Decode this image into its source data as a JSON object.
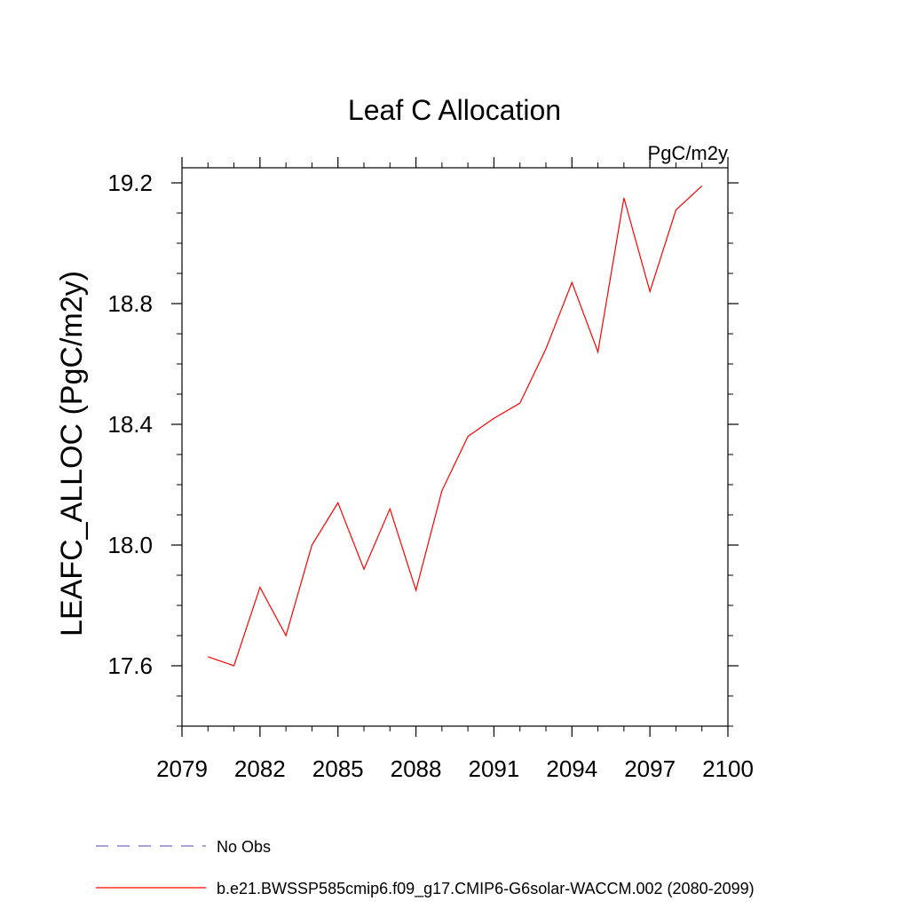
{
  "chart_data": {
    "type": "line",
    "title": "Leaf C Allocation",
    "units_label": "PgC/m2y",
    "ylabel": "LEAFC_ALLOC  (PgC/m2y)",
    "xlabel": "",
    "xlim": [
      2079,
      2100
    ],
    "ylim": [
      17.4,
      19.25
    ],
    "x_ticks": [
      2079,
      2082,
      2085,
      2088,
      2091,
      2094,
      2097,
      2100
    ],
    "y_ticks": [
      17.6,
      18.0,
      18.4,
      18.8,
      19.2
    ],
    "grid": false,
    "legend_placement": "bottom-left",
    "series": [
      {
        "name": "No Obs",
        "color": "#7b68c8",
        "style": "dashed",
        "x": [],
        "values": []
      },
      {
        "name": "b.e21.BWSSP585cmip6.f09_g17.CMIP6-G6solar-WACCM.002 (2080-2099)",
        "color": "#ff0000",
        "style": "solid",
        "x": [
          2080,
          2081,
          2082,
          2083,
          2084,
          2085,
          2086,
          2087,
          2088,
          2089,
          2090,
          2091,
          2092,
          2093,
          2094,
          2095,
          2096,
          2097,
          2098,
          2099
        ],
        "values": [
          17.63,
          17.6,
          17.86,
          17.7,
          18.0,
          18.14,
          17.92,
          18.12,
          17.85,
          18.18,
          18.36,
          18.42,
          18.47,
          18.65,
          18.87,
          18.64,
          19.15,
          18.84,
          19.11,
          19.19
        ]
      }
    ]
  }
}
